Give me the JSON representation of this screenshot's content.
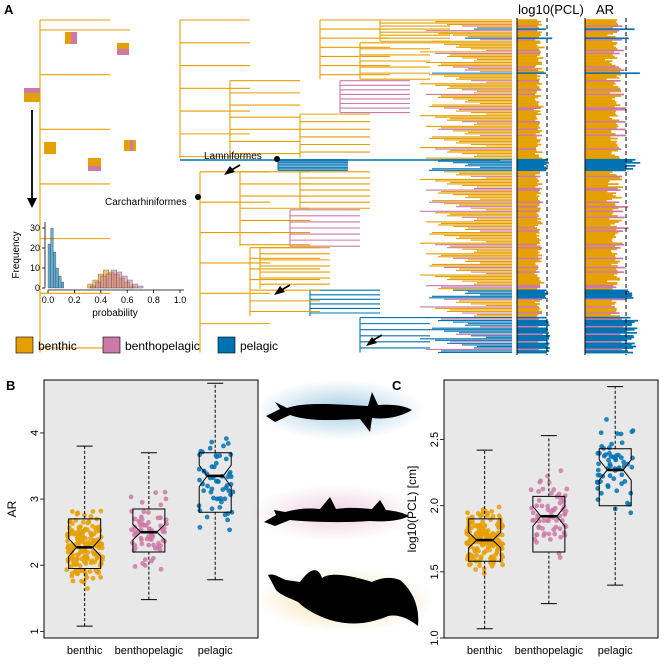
{
  "panels": {
    "a": {
      "letter": "A",
      "col_labels": {
        "pcl": "log10(PCL)",
        "ar": "AR"
      },
      "clade_labels": {
        "lamniformes": "Lamniformes",
        "carcharhiniformes": "Carcharhiniformes"
      },
      "inset": {
        "ylabel": "Frequency",
        "xlabel": "probability",
        "yticks": [
          "0",
          "10",
          "20",
          "30"
        ],
        "xticks": [
          "0.0",
          "0.2",
          "0.4",
          "0.6",
          "0.8",
          "1.0"
        ]
      }
    },
    "b": {
      "letter": "B"
    },
    "c": {
      "letter": "C"
    }
  },
  "legend": [
    {
      "label": "benthic",
      "color": "#E69F00"
    },
    {
      "label": "benthopelagic",
      "color": "#CC79A7"
    },
    {
      "label": "pelagic",
      "color": "#0072B2"
    }
  ],
  "colors": {
    "benthic": "#E69F00",
    "benthopelagic": "#CC79A7",
    "pelagic": "#0072B2",
    "panel_bg": "#e8e8e8"
  },
  "chart_data": [
    {
      "type": "box",
      "panel": "B",
      "ylabel": "AR",
      "categories": [
        "benthic",
        "benthopelagic",
        "pelagic"
      ],
      "ylim": [
        0.9,
        4.8
      ],
      "yticks": [
        "1",
        "2",
        "3",
        "4"
      ],
      "boxes": [
        {
          "name": "benthic",
          "whisker_low": 1.08,
          "q1": 1.95,
          "median": 2.27,
          "q3": 2.7,
          "whisker_high": 3.8
        },
        {
          "name": "benthopelagic",
          "whisker_low": 1.48,
          "q1": 2.2,
          "median": 2.5,
          "q3": 2.85,
          "whisker_high": 3.7
        },
        {
          "name": "pelagic",
          "whisker_low": 1.78,
          "q1": 2.8,
          "median": 3.35,
          "q3": 3.7,
          "whisker_high": 4.75
        }
      ]
    },
    {
      "type": "box",
      "panel": "C",
      "ylabel": "log10(PCL) [cm]",
      "categories": [
        "benthic",
        "benthopelagic",
        "pelagic"
      ],
      "ylim": [
        1.0,
        2.95
      ],
      "yticks": [
        "1.0",
        "1.5",
        "2.0",
        "2.5"
      ],
      "boxes": [
        {
          "name": "benthic",
          "whisker_low": 1.07,
          "q1": 1.58,
          "median": 1.74,
          "q3": 1.9,
          "whisker_high": 2.42
        },
        {
          "name": "benthopelagic",
          "whisker_low": 1.26,
          "q1": 1.65,
          "median": 1.92,
          "q3": 2.07,
          "whisker_high": 2.53
        },
        {
          "name": "pelagic",
          "whisker_low": 1.4,
          "q1": 2.0,
          "median": 2.27,
          "q3": 2.43,
          "whisker_high": 2.9
        }
      ]
    }
  ]
}
